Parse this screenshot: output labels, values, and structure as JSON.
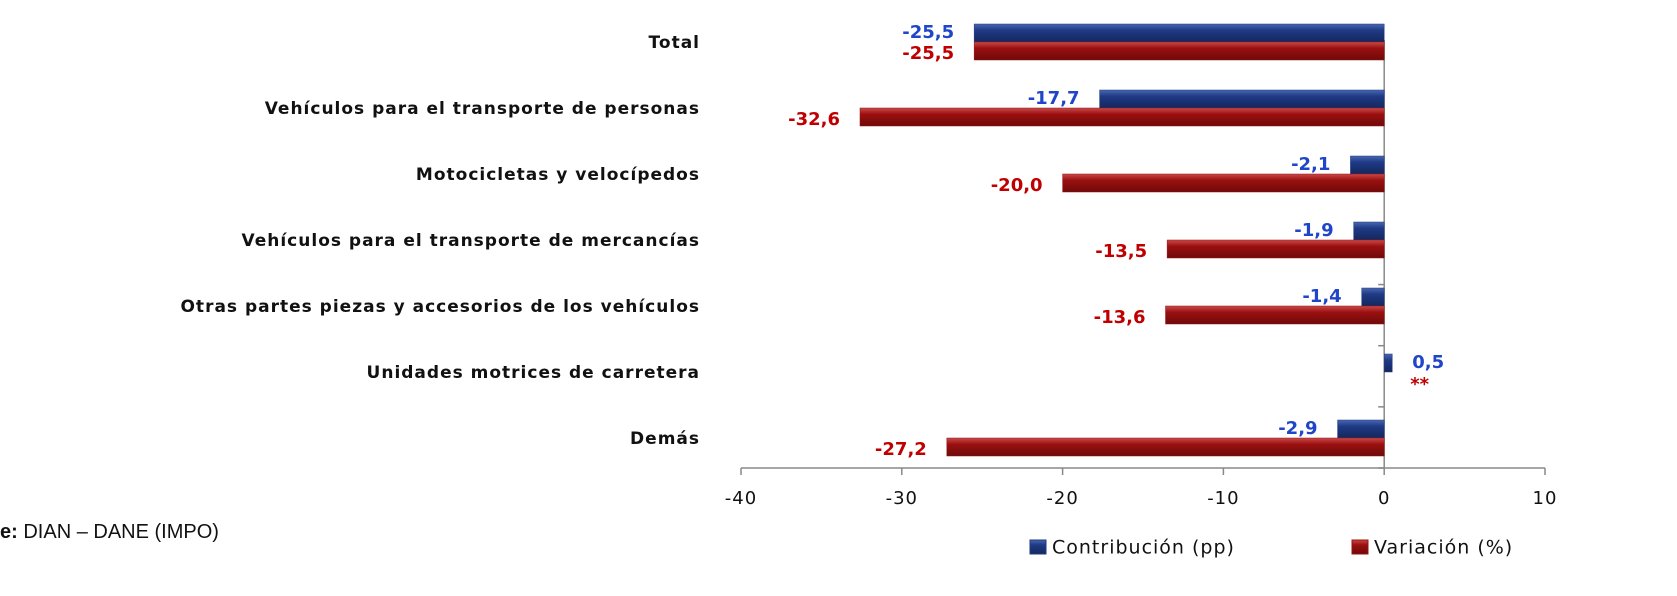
{
  "chart_data": {
    "type": "barh",
    "categories": [
      "Total",
      "Vehículos para el transporte de personas",
      "Motocicletas y velocípedos",
      "Vehículos para el transporte de mercancías",
      "Otras partes piezas y accesorios de los vehículos",
      "Unidades motrices de carretera",
      "Demás"
    ],
    "series": [
      {
        "name": "Contribución (pp)",
        "color": "#1f3a85",
        "label_color": "#1f45c8",
        "values": [
          -25.5,
          -17.7,
          -2.1,
          -1.9,
          -1.4,
          0.5,
          -2.9
        ],
        "value_labels": [
          "-25,5",
          "-17,7",
          "-2,1",
          "-1,9",
          "-1,4",
          "0,5",
          "-2,9"
        ]
      },
      {
        "name": "Variación (%)",
        "color": "#9b1010",
        "label_color": "#c00000",
        "values": [
          -25.5,
          -32.6,
          -20.0,
          -13.5,
          -13.6,
          null,
          -27.2
        ],
        "value_labels": [
          "-25,5",
          "-32,6",
          "-20,0",
          "-13,5",
          "-13,6",
          "**",
          "-27,2"
        ]
      }
    ],
    "xlim": [
      -40,
      10
    ],
    "xticks": [
      -40,
      -30,
      -20,
      -10,
      0,
      10
    ],
    "legend": "bottom-right",
    "source_label": "e:",
    "source": "DIAN – DANE (IMPO)"
  }
}
